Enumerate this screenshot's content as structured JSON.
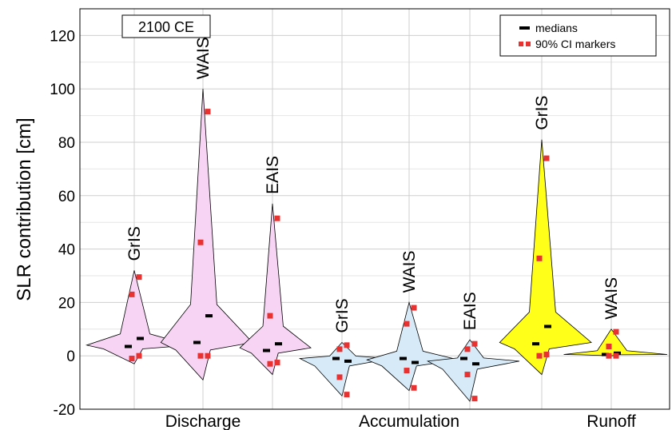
{
  "chart_data": {
    "type": "violin",
    "title": "2100 CE",
    "xlabel": "",
    "ylabel": "SLR contribution [cm]",
    "ylim": [
      -20,
      130
    ],
    "yticks": [
      "-20",
      "0",
      "20",
      "40",
      "60",
      "80",
      "100",
      "120"
    ],
    "grid": true,
    "legend": {
      "position": "top-right",
      "entries": [
        "medians",
        "90% CI markers"
      ]
    },
    "groups": [
      "Discharge",
      "Accumulation",
      "Runoff"
    ],
    "colors": {
      "Discharge": "#f7d4f4",
      "Accumulation": "#d6eaf8",
      "Runoff": "#ffff1a",
      "ci_marker": "#e83232",
      "median": "#000000"
    },
    "violins": [
      {
        "group": "Discharge",
        "label": "GrIS",
        "min": -3,
        "max": 32,
        "mode": 4,
        "medians": [
          3.5,
          6.5
        ],
        "ci": [
          -1,
          23,
          0,
          29.5
        ]
      },
      {
        "group": "Discharge",
        "label": "WAIS",
        "min": -9,
        "max": 100,
        "mode": 5,
        "medians": [
          5,
          15
        ],
        "ci": [
          0,
          42.5,
          0,
          91.5
        ]
      },
      {
        "group": "Discharge",
        "label": "EAIS",
        "min": -7,
        "max": 57,
        "mode": 3,
        "medians": [
          2,
          4.5
        ],
        "ci": [
          -3,
          15,
          -2.5,
          51.5
        ]
      },
      {
        "group": "Accumulation",
        "label": "GrIS",
        "min": -15,
        "max": 5,
        "mode": -1,
        "medians": [
          -1,
          -2
        ],
        "ci": [
          -8,
          2.5,
          -14.5,
          4
        ]
      },
      {
        "group": "Accumulation",
        "label": "WAIS",
        "min": -13,
        "max": 20,
        "mode": -1.5,
        "medians": [
          -1,
          -2.5
        ],
        "ci": [
          -5.5,
          12,
          -12,
          18
        ]
      },
      {
        "group": "Accumulation",
        "label": "EAIS",
        "min": -17,
        "max": 6,
        "mode": -2,
        "medians": [
          -1,
          -3
        ],
        "ci": [
          -7,
          2.5,
          -16,
          4.5
        ]
      },
      {
        "group": "Runoff",
        "label": "GrIS",
        "min": -7,
        "max": 81,
        "mode": 5,
        "medians": [
          4.5,
          11
        ],
        "ci": [
          0,
          36.5,
          0.5,
          74
        ]
      },
      {
        "group": "Runoff",
        "label": "WAIS",
        "min": 0,
        "max": 10,
        "mode": 0.5,
        "medians": [
          0.5,
          1
        ],
        "ci": [
          0,
          3.5,
          0,
          9
        ]
      }
    ]
  }
}
